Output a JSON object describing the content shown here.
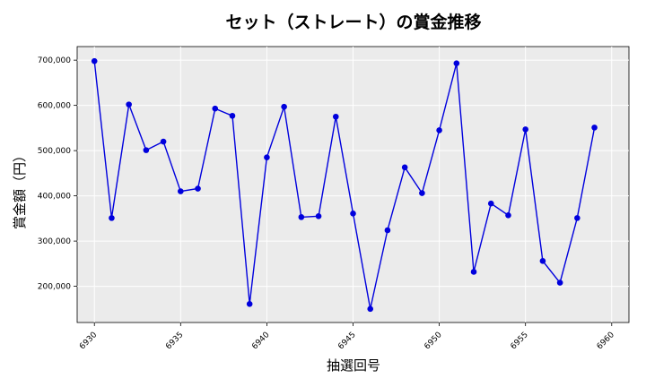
{
  "chart_data": {
    "type": "line",
    "title": "セット（ストレート）の賞金推移",
    "xlabel": "抽選回号",
    "ylabel": "賞金額（円）",
    "xlim": [
      6929,
      6961
    ],
    "ylim": [
      120000,
      730000
    ],
    "xticks": [
      6930,
      6935,
      6940,
      6945,
      6950,
      6955,
      6960
    ],
    "yticks": [
      200000,
      300000,
      400000,
      500000,
      600000,
      700000
    ],
    "ytick_labels": [
      "200,000",
      "300,000",
      "400,000",
      "500,000",
      "600,000",
      "700,000"
    ],
    "grid": true,
    "series": [
      {
        "color": "#0000dd",
        "x": [
          6930,
          6931,
          6932,
          6933,
          6934,
          6935,
          6936,
          6937,
          6938,
          6939,
          6940,
          6941,
          6942,
          6943,
          6944,
          6945,
          6946,
          6947,
          6948,
          6949,
          6950,
          6951,
          6952,
          6953,
          6954,
          6955,
          6956,
          6957,
          6958,
          6959
        ],
        "y": [
          698000,
          351000,
          602000,
          501000,
          520000,
          410000,
          416000,
          593000,
          577000,
          161000,
          485000,
          597000,
          353000,
          355000,
          575000,
          361000,
          150000,
          324000,
          463000,
          406000,
          545000,
          693000,
          232000,
          383000,
          357000,
          547000,
          256000,
          208000,
          351000,
          551000
        ]
      }
    ]
  }
}
